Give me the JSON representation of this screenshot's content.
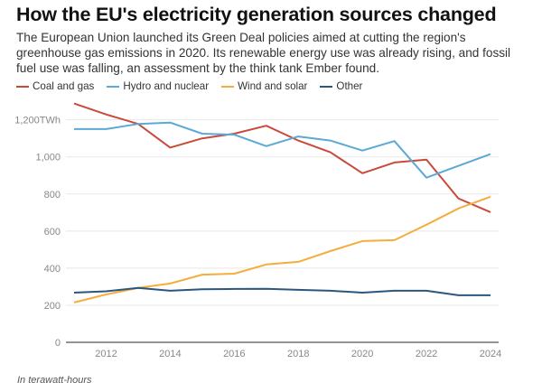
{
  "header": {
    "title": "How the EU's electricity generation sources changed",
    "subtitle": "The European Union launched its Green Deal policies aimed at cutting the region's greenhouse gas emissions in 2020. Its renewable energy use was already rising, and fossil fuel use was falling, an assessment by the think tank Ember found."
  },
  "footer": {
    "note": "In terawatt-hours"
  },
  "chart_data": {
    "type": "line",
    "title": "How the EU's electricity generation sources changed",
    "xlabel": "",
    "ylabel": "",
    "x": [
      2011,
      2012,
      2013,
      2014,
      2015,
      2016,
      2017,
      2018,
      2019,
      2020,
      2021,
      2022,
      2023,
      2024
    ],
    "xticks": [
      "2012",
      "2014",
      "2016",
      "2018",
      "2020",
      "2022",
      "2024"
    ],
    "xtick_values": [
      2012,
      2014,
      2016,
      2018,
      2020,
      2022,
      2024
    ],
    "yticks": [
      "0",
      "200",
      "400",
      "600",
      "800",
      "1,000",
      "1,200TWh"
    ],
    "ytick_values": [
      0,
      200,
      400,
      600,
      800,
      1000,
      1200
    ],
    "ylim": [
      0,
      1300
    ],
    "xlim": [
      2011,
      2024
    ],
    "grid": true,
    "legend_position": "top-left",
    "series": [
      {
        "name": "Coal and gas",
        "color": "#c94a3b",
        "values": [
          1288,
          1229,
          1178,
          1050,
          1100,
          1125,
          1168,
          1088,
          1025,
          912,
          970,
          985,
          776,
          702
        ]
      },
      {
        "name": "Hydro and nuclear",
        "color": "#5aa9d6",
        "values": [
          1150,
          1150,
          1178,
          1185,
          1125,
          1120,
          1058,
          1110,
          1088,
          1034,
          1085,
          888,
          952,
          1015
        ]
      },
      {
        "name": "Wind and solar",
        "color": "#f5ad3d",
        "values": [
          215,
          258,
          293,
          317,
          365,
          370,
          420,
          434,
          492,
          546,
          551,
          634,
          722,
          785
        ]
      },
      {
        "name": "Other",
        "color": "#2b577e",
        "values": [
          268,
          275,
          293,
          278,
          286,
          288,
          289,
          283,
          278,
          268,
          278,
          278,
          254,
          254
        ]
      }
    ],
    "source_note": "In terawatt-hours"
  }
}
